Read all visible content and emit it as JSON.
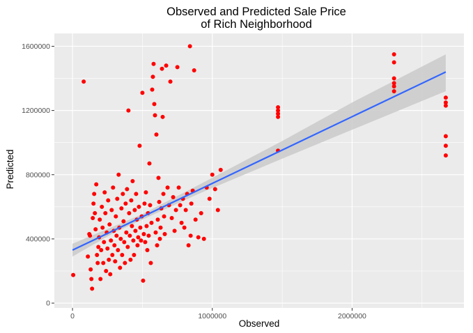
{
  "chart_data": {
    "type": "scatter",
    "title": [
      "Observed and Predicted Sale Price",
      "of Rich Neighborhood"
    ],
    "xlabel": "Observed",
    "ylabel": "Predicted",
    "xlim": [
      -130000,
      2800000
    ],
    "ylim": [
      -30000,
      1680000
    ],
    "xticks": [
      0,
      1000000,
      2000000
    ],
    "xtick_labels": [
      "0",
      "1000000",
      "2000000"
    ],
    "yticks": [
      0,
      400000,
      800000,
      1200000,
      1600000
    ],
    "ytick_labels": [
      "0",
      "400000",
      "800000",
      "1200000",
      "1600000"
    ],
    "grid": true,
    "legend": "none",
    "colors": {
      "panel": "#ebebeb",
      "grid": "#ffffff",
      "points": "#ff0000",
      "fit_line": "#3366ff",
      "ribbon": "#cccccc"
    },
    "fit": {
      "method": "linear",
      "start": [
        0,
        330000
      ],
      "end": [
        2670000,
        1440000
      ],
      "band": [
        {
          "x": 0,
          "lo": 290000,
          "hi": 370000
        },
        {
          "x": 300000,
          "lo": 440000,
          "hi": 480000
        },
        {
          "x": 500000,
          "lo": 520000,
          "hi": 555000
        },
        {
          "x": 900000,
          "lo": 680000,
          "hi": 735000
        },
        {
          "x": 1500000,
          "lo": 900000,
          "hi": 1010000
        },
        {
          "x": 2000000,
          "lo": 1080000,
          "hi": 1250000
        },
        {
          "x": 2670000,
          "lo": 1320000,
          "hi": 1550000
        }
      ]
    },
    "points": [
      [
        5000,
        175000
      ],
      [
        80000,
        1380000
      ],
      [
        110000,
        290000
      ],
      [
        120000,
        430000
      ],
      [
        125000,
        420000
      ],
      [
        130000,
        210000
      ],
      [
        135000,
        150000
      ],
      [
        140000,
        90000
      ],
      [
        145000,
        530000
      ],
      [
        150000,
        620000
      ],
      [
        155000,
        680000
      ],
      [
        160000,
        560000
      ],
      [
        165000,
        460000
      ],
      [
        170000,
        740000
      ],
      [
        175000,
        300000
      ],
      [
        180000,
        250000
      ],
      [
        185000,
        350000
      ],
      [
        190000,
        410000
      ],
      [
        195000,
        520000
      ],
      [
        200000,
        150000
      ],
      [
        205000,
        330000
      ],
      [
        210000,
        600000
      ],
      [
        215000,
        470000
      ],
      [
        220000,
        250000
      ],
      [
        225000,
        380000
      ],
      [
        230000,
        690000
      ],
      [
        235000,
        560000
      ],
      [
        240000,
        200000
      ],
      [
        245000,
        440000
      ],
      [
        250000,
        340000
      ],
      [
        255000,
        640000
      ],
      [
        260000,
        270000
      ],
      [
        265000,
        490000
      ],
      [
        270000,
        180000
      ],
      [
        275000,
        390000
      ],
      [
        280000,
        580000
      ],
      [
        285000,
        300000
      ],
      [
        290000,
        720000
      ],
      [
        295000,
        450000
      ],
      [
        300000,
        360000
      ],
      [
        305000,
        260000
      ],
      [
        310000,
        540000
      ],
      [
        315000,
        420000
      ],
      [
        320000,
        650000
      ],
      [
        325000,
        330000
      ],
      [
        330000,
        800000
      ],
      [
        335000,
        470000
      ],
      [
        340000,
        220000
      ],
      [
        345000,
        400000
      ],
      [
        350000,
        590000
      ],
      [
        355000,
        300000
      ],
      [
        360000,
        680000
      ],
      [
        365000,
        510000
      ],
      [
        370000,
        380000
      ],
      [
        375000,
        250000
      ],
      [
        380000,
        620000
      ],
      [
        385000,
        440000
      ],
      [
        390000,
        710000
      ],
      [
        395000,
        350000
      ],
      [
        400000,
        1200000
      ],
      [
        405000,
        560000
      ],
      [
        410000,
        420000
      ],
      [
        415000,
        270000
      ],
      [
        420000,
        640000
      ],
      [
        425000,
        480000
      ],
      [
        430000,
        760000
      ],
      [
        435000,
        390000
      ],
      [
        440000,
        300000
      ],
      [
        445000,
        580000
      ],
      [
        450000,
        450000
      ],
      [
        455000,
        680000
      ],
      [
        460000,
        520000
      ],
      [
        465000,
        360000
      ],
      [
        470000,
        410000
      ],
      [
        475000,
        600000
      ],
      [
        480000,
        980000
      ],
      [
        485000,
        470000
      ],
      [
        490000,
        390000
      ],
      [
        495000,
        540000
      ],
      [
        500000,
        1310000
      ],
      [
        505000,
        140000
      ],
      [
        510000,
        430000
      ],
      [
        515000,
        620000
      ],
      [
        520000,
        380000
      ],
      [
        525000,
        690000
      ],
      [
        530000,
        480000
      ],
      [
        535000,
        330000
      ],
      [
        540000,
        560000
      ],
      [
        545000,
        420000
      ],
      [
        550000,
        870000
      ],
      [
        555000,
        610000
      ],
      [
        560000,
        250000
      ],
      [
        565000,
        500000
      ],
      [
        570000,
        1330000
      ],
      [
        575000,
        1410000
      ],
      [
        580000,
        1490000
      ],
      [
        585000,
        1240000
      ],
      [
        590000,
        1170000
      ],
      [
        595000,
        440000
      ],
      [
        600000,
        1050000
      ],
      [
        605000,
        360000
      ],
      [
        610000,
        520000
      ],
      [
        615000,
        780000
      ],
      [
        620000,
        630000
      ],
      [
        625000,
        400000
      ],
      [
        630000,
        470000
      ],
      [
        635000,
        590000
      ],
      [
        640000,
        1460000
      ],
      [
        645000,
        1160000
      ],
      [
        650000,
        680000
      ],
      [
        655000,
        540000
      ],
      [
        660000,
        430000
      ],
      [
        670000,
        1480000
      ],
      [
        680000,
        720000
      ],
      [
        690000,
        610000
      ],
      [
        700000,
        1380000
      ],
      [
        710000,
        530000
      ],
      [
        720000,
        660000
      ],
      [
        730000,
        450000
      ],
      [
        740000,
        580000
      ],
      [
        750000,
        1470000
      ],
      [
        760000,
        720000
      ],
      [
        770000,
        610000
      ],
      [
        780000,
        500000
      ],
      [
        790000,
        650000
      ],
      [
        800000,
        470000
      ],
      [
        810000,
        580000
      ],
      [
        820000,
        680000
      ],
      [
        830000,
        360000
      ],
      [
        840000,
        1600000
      ],
      [
        845000,
        420000
      ],
      [
        850000,
        620000
      ],
      [
        860000,
        700000
      ],
      [
        870000,
        1450000
      ],
      [
        880000,
        520000
      ],
      [
        900000,
        410000
      ],
      [
        920000,
        560000
      ],
      [
        940000,
        400000
      ],
      [
        960000,
        720000
      ],
      [
        980000,
        650000
      ],
      [
        1000000,
        800000
      ],
      [
        1020000,
        710000
      ],
      [
        1040000,
        580000
      ],
      [
        1060000,
        830000
      ],
      [
        1470000,
        950000
      ],
      [
        1470000,
        1160000
      ],
      [
        1470000,
        1180000
      ],
      [
        1470000,
        1200000
      ],
      [
        1470000,
        1220000
      ],
      [
        2300000,
        1320000
      ],
      [
        2300000,
        1350000
      ],
      [
        2300000,
        1370000
      ],
      [
        2300000,
        1400000
      ],
      [
        2300000,
        1500000
      ],
      [
        2300000,
        1550000
      ],
      [
        2670000,
        920000
      ],
      [
        2670000,
        980000
      ],
      [
        2670000,
        1040000
      ],
      [
        2670000,
        1230000
      ],
      [
        2670000,
        1250000
      ],
      [
        2670000,
        1280000
      ]
    ]
  }
}
